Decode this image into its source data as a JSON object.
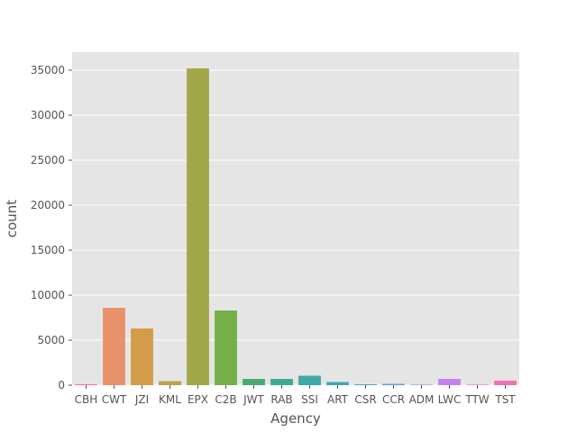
{
  "chart_data": {
    "type": "bar",
    "title": "",
    "xlabel": "Agency",
    "ylabel": "count",
    "ylim": [
      0,
      37000
    ],
    "yticks": [
      0,
      5000,
      10000,
      15000,
      20000,
      25000,
      30000,
      35000
    ],
    "grid": true,
    "background": "#e5e5e5",
    "categories": [
      "CBH",
      "CWT",
      "JZI",
      "KML",
      "EPX",
      "C2B",
      "JWT",
      "RAB",
      "SSI",
      "ART",
      "CSR",
      "CCR",
      "ADM",
      "LWC",
      "TTW",
      "TST"
    ],
    "values": [
      100,
      8600,
      6300,
      450,
      35200,
      8300,
      700,
      700,
      1050,
      350,
      100,
      150,
      60,
      700,
      60,
      500
    ],
    "colors": [
      "#f77189",
      "#e8916a",
      "#d39b4a",
      "#bca14a",
      "#a1a84a",
      "#76b04a",
      "#49ad6f",
      "#3eab8f",
      "#3ea9a6",
      "#40a7b8",
      "#43a5cb",
      "#5f9ee6",
      "#8f95f2",
      "#c482ee",
      "#ea6ddc",
      "#f46fb5"
    ]
  }
}
